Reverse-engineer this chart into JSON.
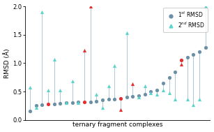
{
  "title": "",
  "xlabel": "ternary fragment complexes",
  "ylabel": "RMSD (Å)",
  "ylim": [
    0,
    2.0
  ],
  "yticks": [
    0.0,
    0.5,
    1.0,
    1.5,
    2.0
  ],
  "background_color": "#ffffff",
  "rmsd1": [
    0.15,
    0.25,
    0.27,
    0.28,
    0.28,
    0.29,
    0.3,
    0.3,
    0.31,
    0.32,
    0.32,
    0.33,
    0.35,
    0.36,
    0.37,
    0.38,
    0.4,
    0.41,
    0.43,
    0.45,
    0.5,
    0.52,
    0.65,
    0.75,
    0.85,
    1.05,
    1.1,
    1.15,
    1.2,
    1.27
  ],
  "rmsd2": [
    0.58,
    0.22,
    1.9,
    0.52,
    1.07,
    0.52,
    0.3,
    0.68,
    0.3,
    1.22,
    2.0,
    0.45,
    0.22,
    0.6,
    0.95,
    0.18,
    1.53,
    0.63,
    0.4,
    0.6,
    0.47,
    0.45,
    0.52,
    0.47,
    0.37,
    0.98,
    0.37,
    0.27,
    0.36,
    2.0
  ],
  "color1_default": "#6b8fa5",
  "color1_highlight": "#e03030",
  "color2_default": "#5cd4cc",
  "color2_highlight": "#e03030",
  "line_color": "#b0c8d8",
  "highlight1_indices": [
    3,
    9,
    15,
    25
  ],
  "highlight2_indices": [
    9,
    10,
    15,
    17,
    25
  ],
  "legend_label1": "1$^{st}$ RMSD",
  "legend_label2": "2$^{nd}$ RMSD"
}
